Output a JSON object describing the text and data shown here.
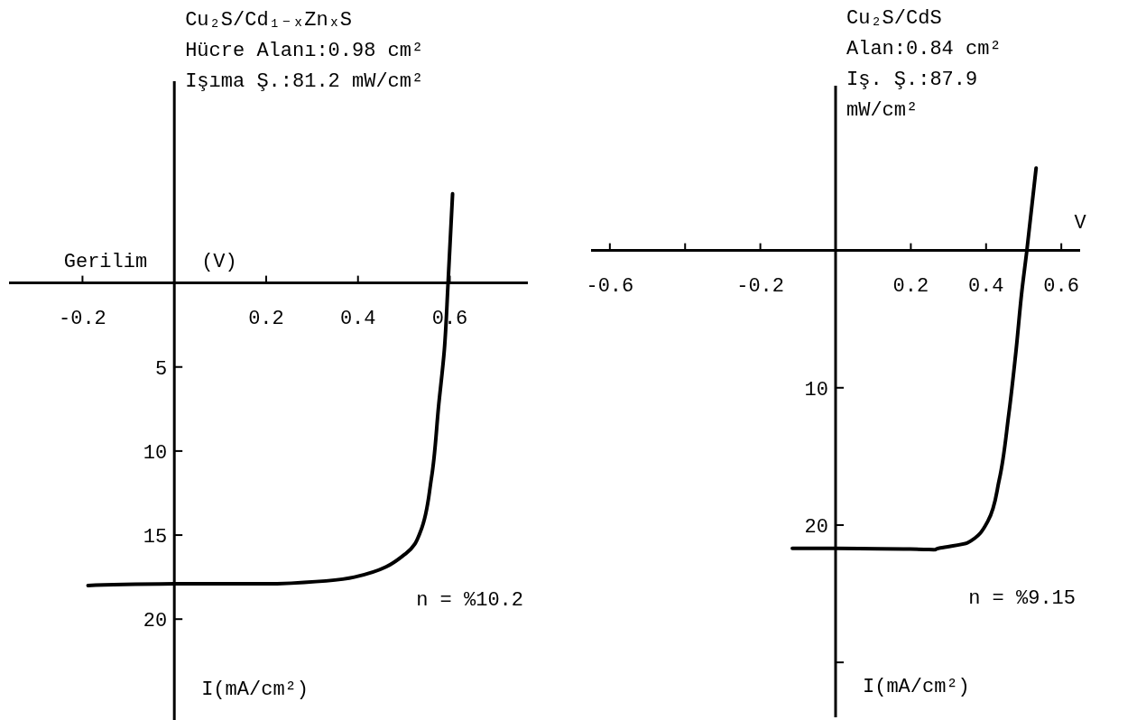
{
  "chart_data": [
    {
      "type": "line",
      "title": "Cu₂S/Cd₁₋ₓZnₓS",
      "subtitle": "Hücre Alanı:0.98 cm²\nIşıma Ş.:81.2 mW/cm²",
      "xlabel": "Gerilim (V)",
      "ylabel": "I(mA/cm²)",
      "annotations": [
        "n = %10.2"
      ],
      "xlim": [
        -0.36,
        0.77
      ],
      "ylim": [
        26,
        -12
      ],
      "xticks": [
        -0.2,
        0.2,
        0.4,
        0.6
      ],
      "yticks": [
        5,
        10,
        15,
        20
      ],
      "grid": false,
      "marker": "none",
      "line_style": "solid",
      "series": [
        {
          "color": "#000000",
          "x": [
            -0.188,
            0,
            0.224,
            0.392,
            0.504,
            0.536,
            0.56,
            0.576,
            0.588,
            0.596,
            0.606
          ],
          "values": [
            18.0,
            17.9,
            17.9,
            17.5,
            16.1,
            14.8,
            11.6,
            7.2,
            4.0,
            0.1,
            -5.3
          ]
        }
      ]
    },
    {
      "type": "line",
      "title": "Cu₂S/CdS",
      "subtitle": "Alan:0.84 cm²\nIş. Ş.:87.9\nmW/cm²",
      "xlabel": "V",
      "ylabel": "I(mA/cm²)",
      "annotations": [
        "n = %9.15"
      ],
      "xlim": [
        -0.65,
        0.65
      ],
      "ylim": [
        34,
        -12
      ],
      "xticks": [
        -0.6,
        {
          "value": -0.4,
          "label": null
        },
        -0.2,
        0.2,
        0.4,
        0.6
      ],
      "yticks": [
        10,
        20,
        {
          "value": 30,
          "label": null
        }
      ],
      "grid": false,
      "marker": "none",
      "line_style": "solid",
      "series": [
        {
          "color": "#000000",
          "x": [
            -0.115,
            0,
            0.265,
            0.35,
            0.405,
            0.435,
            0.46,
            0.48,
            0.495,
            0.508,
            0.533
          ],
          "values": [
            21.7,
            21.7,
            21.8,
            21.3,
            19.7,
            16.7,
            12.0,
            7.2,
            3.0,
            0.1,
            -6.0
          ]
        }
      ]
    }
  ]
}
